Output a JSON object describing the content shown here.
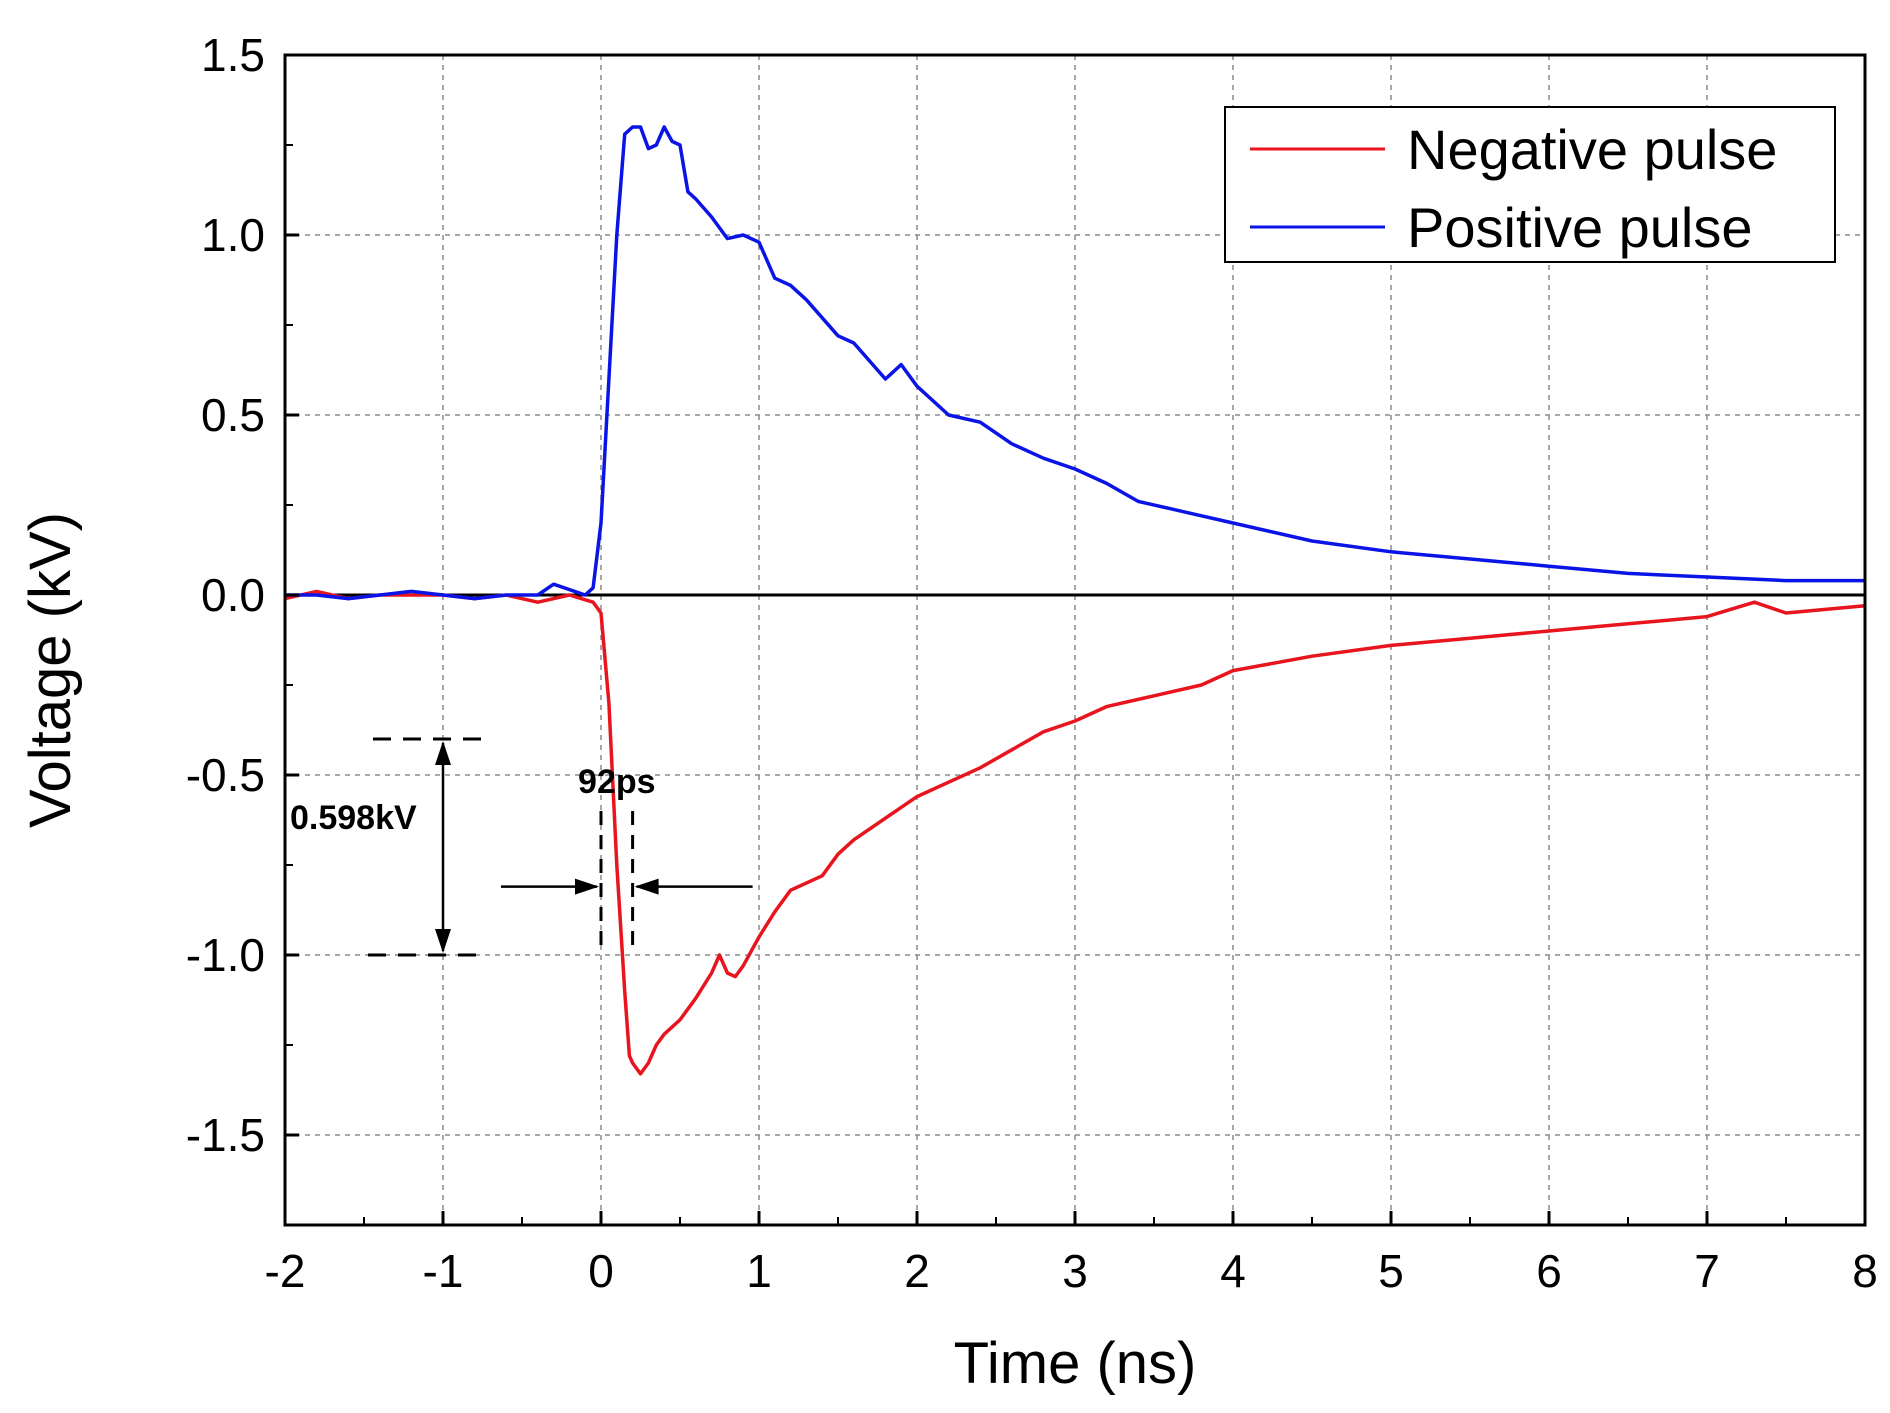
{
  "chart_data": {
    "type": "line",
    "title": "",
    "xlabel": "Time (ns)",
    "ylabel": "Voltage (kV)",
    "xlim": [
      -2,
      8
    ],
    "ylim": [
      -1.75,
      1.5
    ],
    "xticks": [
      -2,
      -1,
      0,
      1,
      2,
      3,
      4,
      5,
      6,
      7,
      8
    ],
    "xtick_labels": [
      "-2",
      "-1",
      "0",
      "1",
      "2",
      "3",
      "4",
      "5",
      "6",
      "7",
      "8"
    ],
    "yticks": [
      -1.5,
      -1.0,
      -0.5,
      0.0,
      0.5,
      1.0,
      1.5
    ],
    "ytick_labels": [
      "-1.5",
      "-1.0",
      "-0.5",
      "0.0",
      "0.5",
      "1.0",
      "1.5"
    ],
    "grid": true,
    "legend_position": "top-right",
    "series": [
      {
        "name": "Negative pulse",
        "color": "#e8141e",
        "x": [
          -2,
          -1.8,
          -1.6,
          -1.4,
          -1.2,
          -1.0,
          -0.8,
          -0.6,
          -0.4,
          -0.2,
          -0.05,
          0.0,
          0.05,
          0.1,
          0.15,
          0.18,
          0.2,
          0.25,
          0.3,
          0.35,
          0.4,
          0.5,
          0.6,
          0.7,
          0.75,
          0.8,
          0.85,
          0.9,
          1.0,
          1.1,
          1.2,
          1.4,
          1.5,
          1.6,
          1.8,
          2.0,
          2.2,
          2.4,
          2.6,
          2.8,
          3.0,
          3.2,
          3.5,
          3.8,
          4.0,
          4.5,
          5.0,
          5.5,
          6.0,
          6.5,
          7.0,
          7.3,
          7.5,
          8.0
        ],
        "y": [
          -0.01,
          0.01,
          -0.01,
          0.0,
          0.0,
          0.0,
          -0.01,
          0.0,
          -0.02,
          0.0,
          -0.02,
          -0.05,
          -0.3,
          -0.75,
          -1.1,
          -1.28,
          -1.3,
          -1.33,
          -1.3,
          -1.25,
          -1.22,
          -1.18,
          -1.12,
          -1.05,
          -1.0,
          -1.05,
          -1.06,
          -1.03,
          -0.95,
          -0.88,
          -0.82,
          -0.78,
          -0.72,
          -0.68,
          -0.62,
          -0.56,
          -0.52,
          -0.48,
          -0.43,
          -0.38,
          -0.35,
          -0.31,
          -0.28,
          -0.25,
          -0.21,
          -0.17,
          -0.14,
          -0.12,
          -0.1,
          -0.08,
          -0.06,
          -0.02,
          -0.05,
          -0.03
        ]
      },
      {
        "name": "Positive pulse",
        "color": "#0a14e6",
        "x": [
          -2,
          -1.8,
          -1.6,
          -1.4,
          -1.2,
          -1.0,
          -0.8,
          -0.6,
          -0.4,
          -0.3,
          -0.1,
          -0.05,
          0.0,
          0.05,
          0.1,
          0.15,
          0.2,
          0.25,
          0.3,
          0.35,
          0.4,
          0.45,
          0.5,
          0.55,
          0.6,
          0.7,
          0.8,
          0.9,
          1.0,
          1.1,
          1.2,
          1.3,
          1.5,
          1.6,
          1.7,
          1.8,
          1.9,
          2.0,
          2.2,
          2.4,
          2.6,
          2.8,
          3.0,
          3.2,
          3.4,
          3.6,
          3.8,
          4.0,
          4.5,
          5.0,
          5.5,
          6.0,
          6.5,
          7.0,
          7.5,
          8.0
        ],
        "y": [
          0.0,
          0.0,
          -0.01,
          0.0,
          0.01,
          0.0,
          -0.01,
          0.0,
          0.0,
          0.03,
          0.0,
          0.02,
          0.2,
          0.6,
          1.0,
          1.28,
          1.3,
          1.3,
          1.24,
          1.25,
          1.3,
          1.26,
          1.25,
          1.12,
          1.1,
          1.05,
          0.99,
          1.0,
          0.98,
          0.88,
          0.86,
          0.82,
          0.72,
          0.7,
          0.65,
          0.6,
          0.64,
          0.58,
          0.5,
          0.48,
          0.42,
          0.38,
          0.35,
          0.31,
          0.26,
          0.24,
          0.22,
          0.2,
          0.15,
          0.12,
          0.1,
          0.08,
          0.06,
          0.05,
          0.04,
          0.04
        ]
      }
    ],
    "annotations": [
      {
        "text": "0.598kV",
        "y_from": -0.4,
        "y_to": -1.0,
        "x": -1.0
      },
      {
        "text": "92ps",
        "x_from": 0.0,
        "x_to": 0.2,
        "y": -0.81
      }
    ]
  }
}
